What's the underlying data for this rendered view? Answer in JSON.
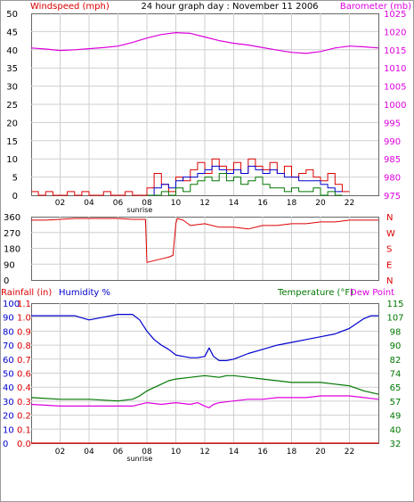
{
  "header": {
    "title": "24 hour graph day : November 11 2006",
    "left_label": "Windspeed (mph)",
    "right_label": "Barometer (mb)"
  },
  "colors": {
    "red": "#dd0000",
    "blue": "#0000cc",
    "green": "#007700",
    "magenta": "#dd00dd",
    "grid": "#cfcfcf",
    "frame": "#555555"
  },
  "x_ticks": [
    "02",
    "04",
    "06",
    "08",
    "10",
    "12",
    "14",
    "16",
    "18",
    "20",
    "22"
  ],
  "sunrise_label": "sunrise",
  "chart_data": [
    {
      "type": "line",
      "name": "wind_barometer",
      "title": "24 hour graph day : November 11 2006",
      "left_axis": {
        "label": "Windspeed (mph)",
        "ticks": [
          0,
          5,
          10,
          15,
          20,
          25,
          30,
          35,
          40,
          45,
          50
        ],
        "range": [
          0,
          50
        ]
      },
      "right_axis": {
        "label": "Barometer (mb)",
        "ticks": [
          975,
          980,
          985,
          990,
          995,
          1000,
          1005,
          1010,
          1015,
          1020,
          1025
        ],
        "range": [
          975,
          1025
        ]
      },
      "series": [
        {
          "color": "magenta",
          "axis": "right",
          "x": [
            0,
            1,
            2,
            3,
            4,
            5,
            6,
            7,
            8,
            9,
            10,
            11,
            12,
            13,
            14,
            15,
            16,
            17,
            18,
            19,
            20,
            21,
            22,
            23,
            24
          ],
          "values": [
            1015.5,
            1015.2,
            1014.8,
            1015.0,
            1015.3,
            1015.6,
            1016.0,
            1017.0,
            1018.2,
            1019.2,
            1019.7,
            1019.5,
            1018.5,
            1017.5,
            1016.8,
            1016.3,
            1015.6,
            1014.9,
            1014.3,
            1014.0,
            1014.5,
            1015.5,
            1016.0,
            1015.8,
            1015.5
          ]
        },
        {
          "color": "red",
          "axis": "left",
          "x": [
            0,
            0.5,
            1,
            1.5,
            2,
            2.5,
            3,
            3.5,
            4,
            4.5,
            5,
            5.5,
            6,
            6.5,
            7,
            7.5,
            8,
            8.5,
            9,
            9.5,
            10,
            10.5,
            11,
            11.5,
            12,
            12.5,
            13,
            13.5,
            14,
            14.5,
            15,
            15.5,
            16,
            16.5,
            17,
            17.5,
            18,
            18.5,
            19,
            19.5,
            20,
            20.5,
            21,
            21.5
          ],
          "values": [
            1,
            0,
            1,
            0,
            0,
            1,
            0,
            1,
            0,
            0,
            1,
            0,
            0,
            1,
            0,
            0,
            2,
            6,
            3,
            1,
            5,
            4,
            7,
            9,
            6,
            10,
            8,
            7,
            9,
            6,
            10,
            8,
            7,
            9,
            6,
            8,
            5,
            6,
            7,
            5,
            4,
            6,
            3,
            1
          ]
        },
        {
          "color": "blue",
          "axis": "left",
          "x": [
            8,
            8.5,
            9,
            9.5,
            10,
            10.5,
            11,
            11.5,
            12,
            12.5,
            13,
            13.5,
            14,
            14.5,
            15,
            15.5,
            16,
            16.5,
            17,
            17.5,
            18,
            18.5,
            19,
            19.5,
            20,
            20.5,
            21
          ],
          "values": [
            0,
            2,
            3,
            2,
            4,
            5,
            5,
            6,
            7,
            8,
            7,
            6,
            7,
            6,
            8,
            7,
            6,
            7,
            6,
            5,
            5,
            4,
            4,
            4,
            3,
            2,
            1
          ]
        },
        {
          "color": "green",
          "axis": "left",
          "x": [
            8,
            8.5,
            9,
            9.5,
            10,
            10.5,
            11,
            11.5,
            12,
            12.5,
            13,
            13.5,
            14,
            14.5,
            15,
            15.5,
            16,
            16.5,
            17,
            17.5,
            18,
            18.5,
            19,
            19.5,
            20,
            20.5,
            21
          ],
          "values": [
            0,
            0,
            1,
            0,
            2,
            1,
            3,
            4,
            5,
            4,
            6,
            4,
            5,
            3,
            4,
            5,
            3,
            2,
            2,
            1,
            2,
            1,
            1,
            2,
            0,
            1,
            0
          ]
        }
      ]
    },
    {
      "type": "line",
      "name": "wind_direction",
      "left_axis": {
        "ticks": [
          0,
          90,
          180,
          270,
          360
        ],
        "range": [
          0,
          360
        ]
      },
      "right_axis": {
        "ticks": [
          "N",
          "E",
          "S",
          "W",
          "N"
        ]
      },
      "series": [
        {
          "color": "red",
          "x": [
            0,
            1,
            2,
            3,
            4,
            5,
            6,
            7,
            7.9,
            8.0,
            8.5,
            9,
            9.5,
            9.8,
            10,
            10.1,
            10.5,
            11,
            12,
            13,
            14,
            15,
            16,
            17,
            18,
            19,
            20,
            21,
            22,
            23,
            24
          ],
          "values": [
            340,
            340,
            345,
            350,
            350,
            350,
            350,
            345,
            345,
            100,
            110,
            120,
            130,
            140,
            320,
            350,
            340,
            310,
            320,
            300,
            300,
            290,
            310,
            310,
            320,
            320,
            330,
            330,
            340,
            340,
            340
          ]
        }
      ]
    },
    {
      "type": "line",
      "name": "rain_humidity_temp",
      "left_axis_rain": {
        "label": "Rainfall (in)",
        "ticks": [
          0.0,
          0.1,
          0.2,
          0.3,
          0.4,
          0.6,
          0.7,
          0.8,
          0.9,
          1.0,
          1.1
        ]
      },
      "left_axis_humidity": {
        "label": "Humidity %",
        "ticks": [
          0,
          10,
          20,
          30,
          40,
          50,
          60,
          70,
          80,
          90,
          100
        ],
        "range": [
          0,
          100
        ]
      },
      "right_axis": {
        "label_temp": "Temperature (°F)",
        "label_dew": "Dew Point",
        "ticks": [
          32,
          40,
          49,
          57,
          65,
          74,
          82,
          90,
          98,
          107,
          115
        ],
        "range": [
          32,
          115
        ]
      },
      "series": [
        {
          "color": "blue",
          "axis": "humidity",
          "x": [
            0,
            1,
            2,
            3,
            4,
            5,
            6,
            7,
            7.5,
            8,
            8.5,
            9,
            9.5,
            10,
            10.5,
            11,
            11.5,
            12,
            12.3,
            12.6,
            13,
            13.5,
            14,
            15,
            16,
            17,
            18,
            19,
            20,
            21,
            22,
            23,
            23.5,
            24
          ],
          "values": [
            91,
            91,
            91,
            91,
            88,
            90,
            92,
            92,
            88,
            80,
            74,
            70,
            67,
            63,
            62,
            61,
            61,
            62,
            68,
            62,
            59,
            59,
            60,
            64,
            67,
            70,
            72,
            74,
            76,
            78,
            82,
            89,
            91,
            91
          ]
        },
        {
          "color": "green",
          "axis": "temp",
          "x": [
            0,
            2,
            4,
            6,
            7,
            7.5,
            8,
            8.5,
            9,
            9.5,
            10,
            11,
            12,
            13,
            13.5,
            14,
            15,
            16,
            17,
            18,
            19,
            20,
            21,
            22,
            23,
            24
          ],
          "values": [
            59,
            58,
            58,
            57,
            58,
            60,
            63,
            65,
            67,
            69,
            70,
            71,
            72,
            71,
            72,
            72,
            71,
            70,
            69,
            68,
            68,
            68,
            67,
            66,
            63,
            61
          ]
        },
        {
          "color": "magenta",
          "axis": "temp",
          "x": [
            0,
            2,
            4,
            6,
            7,
            8,
            9,
            10,
            11,
            11.5,
            12,
            12.3,
            12.6,
            13,
            14,
            15,
            16,
            17,
            18,
            19,
            20,
            21,
            22,
            23,
            24
          ],
          "values": [
            55,
            54,
            54,
            54,
            54,
            56,
            55,
            56,
            55,
            56,
            54,
            53,
            55,
            56,
            57,
            58,
            58,
            59,
            59,
            59,
            60,
            60,
            60,
            59,
            58
          ]
        },
        {
          "color": "red",
          "axis": "rain",
          "x": [
            0,
            24
          ],
          "values": [
            0,
            0
          ]
        }
      ]
    }
  ]
}
